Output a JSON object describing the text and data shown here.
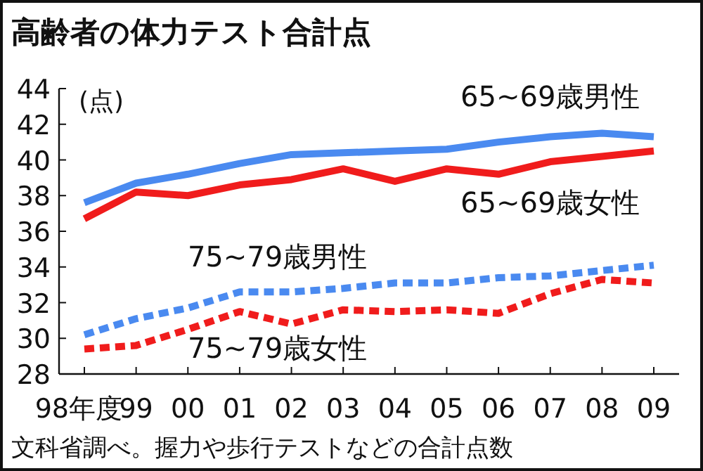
{
  "chart_data": {
    "type": "line",
    "title": "高齢者の体力テスト合計点",
    "ylabel": "(点)",
    "annotations": [
      "文科省調べ。握力や歩行テストなどの合計点数"
    ],
    "categories": [
      "98年度",
      "99",
      "00",
      "01",
      "02",
      "03",
      "04",
      "05",
      "06",
      "07",
      "08",
      "09"
    ],
    "ylim": [
      28,
      44
    ],
    "yticks": [
      28,
      30,
      32,
      34,
      36,
      38,
      40,
      42,
      44
    ],
    "grid": false,
    "legend": false,
    "series": [
      {
        "name": "65~69歳男性",
        "color": "#4a8af0",
        "line_style": "solid",
        "values": [
          37.6,
          38.7,
          39.2,
          39.8,
          40.3,
          40.4,
          40.5,
          40.6,
          41.0,
          41.3,
          41.5,
          41.3
        ]
      },
      {
        "name": "65~69歳女性",
        "color": "#f01c1c",
        "line_style": "solid",
        "values": [
          36.7,
          38.2,
          38.0,
          38.6,
          38.9,
          39.5,
          38.8,
          39.5,
          39.2,
          39.9,
          40.2,
          40.5
        ]
      },
      {
        "name": "75~79歳男性",
        "color": "#4a8af0",
        "line_style": "dashed",
        "values": [
          30.2,
          31.1,
          31.7,
          32.6,
          32.6,
          32.8,
          33.1,
          33.1,
          33.4,
          33.5,
          33.8,
          34.1
        ]
      },
      {
        "name": "75~79歳女性",
        "color": "#f01c1c",
        "line_style": "dashed",
        "values": [
          29.4,
          29.6,
          30.5,
          31.5,
          30.8,
          31.6,
          31.5,
          31.6,
          31.4,
          32.5,
          33.3,
          33.1
        ]
      }
    ]
  }
}
